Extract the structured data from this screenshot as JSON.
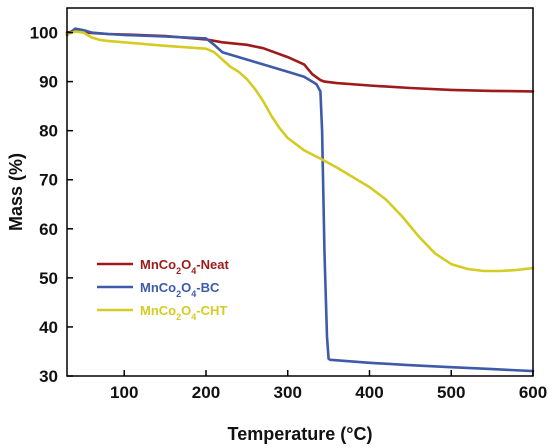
{
  "chart_data": {
    "type": "line",
    "xlabel": "Temperature (°C)",
    "ylabel": "Mass (%)",
    "xlim": [
      30,
      600
    ],
    "ylim": [
      30,
      105
    ],
    "xticks": [
      100,
      200,
      300,
      400,
      500,
      600
    ],
    "yticks": [
      30,
      40,
      50,
      60,
      70,
      80,
      90,
      100
    ],
    "grid": false,
    "legend_position": "center-left",
    "series": [
      {
        "name": "MnCo2O4-Neat",
        "legend": {
          "pre": "MnCo",
          "sub1": "2",
          "mid": "O",
          "sub2": "4",
          "post": "-Neat"
        },
        "color": "#9e1b1b",
        "x": [
          30,
          40,
          50,
          60,
          80,
          100,
          150,
          200,
          220,
          250,
          270,
          300,
          320,
          330,
          340,
          345,
          360,
          400,
          450,
          500,
          550,
          600
        ],
        "y": [
          100.0,
          100.3,
          100.0,
          99.9,
          99.7,
          99.6,
          99.3,
          98.6,
          98.0,
          97.5,
          96.8,
          95.0,
          93.5,
          91.5,
          90.3,
          90.0,
          89.7,
          89.2,
          88.7,
          88.3,
          88.1,
          88.0
        ]
      },
      {
        "name": "MnCo2O4-BC",
        "legend": {
          "pre": "MnCo",
          "sub1": "2",
          "mid": "O",
          "sub2": "4",
          "post": "-BC"
        },
        "color": "#3d5ba9",
        "x": [
          30,
          40,
          50,
          60,
          80,
          100,
          150,
          200,
          210,
          220,
          240,
          260,
          280,
          300,
          320,
          335,
          340,
          342,
          345,
          348,
          350,
          352,
          360,
          400,
          450,
          500,
          550,
          600
        ],
        "y": [
          99.5,
          100.8,
          100.5,
          100.0,
          99.7,
          99.5,
          99.2,
          98.8,
          97.5,
          96.0,
          95.0,
          94.0,
          93.0,
          92.0,
          91.0,
          89.5,
          88.0,
          80.0,
          55.0,
          38.0,
          33.5,
          33.3,
          33.2,
          32.7,
          32.2,
          31.8,
          31.4,
          31.0
        ]
      },
      {
        "name": "MnCo2O4-CHT",
        "legend": {
          "pre": "MnCo",
          "sub1": "2",
          "mid": "O",
          "sub2": "4",
          "post": "-CHT"
        },
        "color": "#d4cc22",
        "x": [
          30,
          40,
          50,
          60,
          70,
          80,
          100,
          150,
          200,
          210,
          220,
          230,
          240,
          250,
          260,
          270,
          280,
          290,
          300,
          320,
          340,
          360,
          380,
          400,
          420,
          440,
          460,
          480,
          500,
          520,
          540,
          560,
          580,
          600
        ],
        "y": [
          99.7,
          100.2,
          100.0,
          99.0,
          98.5,
          98.3,
          98.0,
          97.3,
          96.7,
          96.0,
          94.5,
          93.0,
          92.0,
          90.5,
          88.5,
          86.0,
          83.0,
          80.5,
          78.5,
          76.0,
          74.3,
          72.5,
          70.5,
          68.5,
          66.0,
          62.5,
          58.5,
          55.0,
          52.8,
          51.8,
          51.4,
          51.4,
          51.6,
          52.0
        ]
      }
    ]
  }
}
